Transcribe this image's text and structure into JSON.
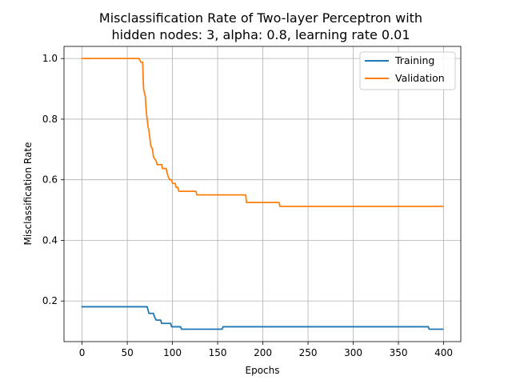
{
  "chart_data": {
    "type": "line",
    "title": "Misclassification Rate of Two-layer Perceptron with",
    "subtitle": "hidden nodes: 3, alpha: 0.8, learning rate 0.01",
    "xlabel": "Epochs",
    "ylabel": "Misclassification Rate",
    "xlim": [
      -20,
      419
    ],
    "ylim": [
      0.066,
      1.04
    ],
    "xticks": [
      0,
      50,
      100,
      150,
      200,
      250,
      300,
      350,
      400
    ],
    "yticks": [
      0.2,
      0.4,
      0.6,
      0.8,
      1.0
    ],
    "xtick_labels": [
      "0",
      "50",
      "100",
      "150",
      "200",
      "250",
      "300",
      "350",
      "400"
    ],
    "ytick_labels": [
      "0.2",
      "0.4",
      "0.6",
      "0.8",
      "1.0"
    ],
    "grid": true,
    "legend_position": "top-right",
    "series": [
      {
        "name": "Training",
        "color": "#1f77b4",
        "step": true,
        "points": [
          [
            0,
            0.181
          ],
          [
            72,
            0.181
          ],
          [
            74,
            0.159
          ],
          [
            79,
            0.159
          ],
          [
            80,
            0.148
          ],
          [
            82,
            0.137
          ],
          [
            87,
            0.137
          ],
          [
            88,
            0.126
          ],
          [
            98,
            0.126
          ],
          [
            99,
            0.115
          ],
          [
            109,
            0.115
          ],
          [
            110,
            0.107
          ],
          [
            155,
            0.107
          ],
          [
            156,
            0.115
          ],
          [
            383,
            0.115
          ],
          [
            384,
            0.107
          ],
          [
            399,
            0.107
          ]
        ]
      },
      {
        "name": "Validation",
        "color": "#ff7f0e",
        "step": false,
        "points": [
          [
            0,
            1.0
          ],
          [
            63,
            1.0
          ],
          [
            65,
            0.988
          ],
          [
            67,
            0.988
          ],
          [
            68,
            0.9
          ],
          [
            70,
            0.875
          ],
          [
            71,
            0.825
          ],
          [
            72,
            0.8
          ],
          [
            73,
            0.775
          ],
          [
            74,
            0.762
          ],
          [
            75,
            0.737
          ],
          [
            76,
            0.712
          ],
          [
            78,
            0.7
          ],
          [
            79,
            0.675
          ],
          [
            82,
            0.662
          ],
          [
            83,
            0.65
          ],
          [
            88,
            0.65
          ],
          [
            89,
            0.637
          ],
          [
            93,
            0.637
          ],
          [
            94,
            0.625
          ],
          [
            95,
            0.612
          ],
          [
            97,
            0.6
          ],
          [
            99,
            0.6
          ],
          [
            100,
            0.588
          ],
          [
            103,
            0.588
          ],
          [
            104,
            0.575
          ],
          [
            106,
            0.575
          ],
          [
            107,
            0.562
          ],
          [
            126,
            0.562
          ],
          [
            127,
            0.55
          ],
          [
            181,
            0.55
          ],
          [
            182,
            0.525
          ],
          [
            218,
            0.525
          ],
          [
            219,
            0.512
          ],
          [
            399,
            0.512
          ]
        ]
      }
    ]
  }
}
